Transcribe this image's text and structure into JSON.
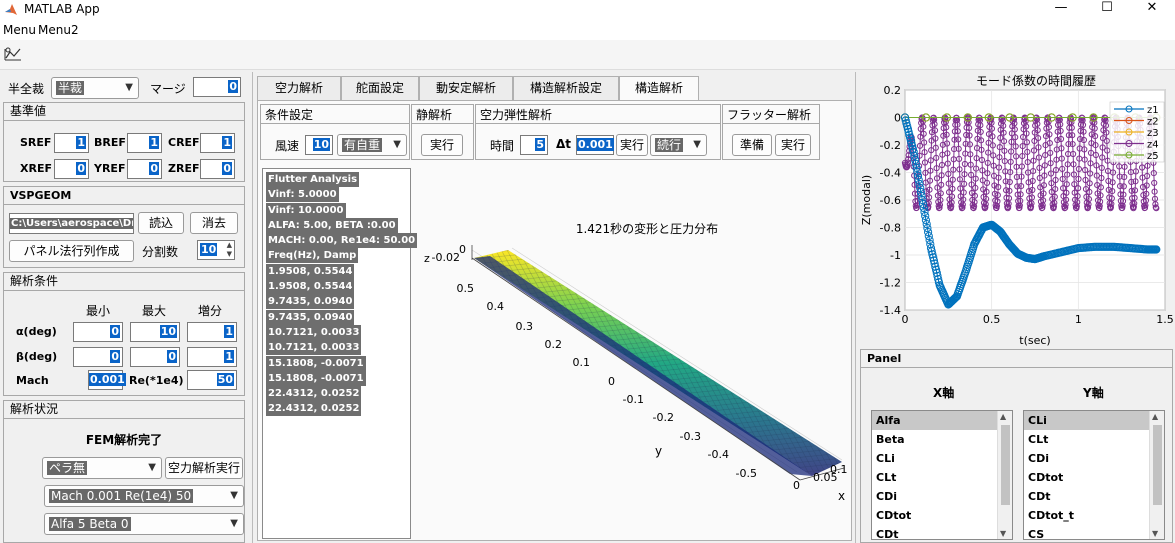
{
  "window": {
    "title": "MATLAB App",
    "minimize": "—",
    "maximize": "☐",
    "close": "✕"
  },
  "menu": [
    "Menu",
    "Menu2"
  ],
  "left": {
    "half_label": "半全裁",
    "half_value": "半裁",
    "margin_label": "マージ",
    "margin_value": "0",
    "ref": {
      "title": "基準値",
      "sref_label": "SREF",
      "sref": "1",
      "bref_label": "BREF",
      "bref": "1",
      "cref_label": "CREF",
      "cref": "1",
      "xref_label": "XREF",
      "xref": "0",
      "yref_label": "YREF",
      "yref": "0",
      "zref_label": "ZREF",
      "zref": "0"
    },
    "vspgeom": {
      "title": "VSPGEOM",
      "path": "C:\\Users\\aerospace\\Dr",
      "load": "読込",
      "erase": "消去",
      "panel_make": "パネル法行列作成",
      "div_label": "分割数",
      "div_value": "10"
    },
    "cond": {
      "title": "解析条件",
      "min": "最小",
      "max": "最大",
      "step": "増分",
      "alpha_label": "α(deg)",
      "alpha": [
        "0",
        "10",
        "1"
      ],
      "beta_label": "β(deg)",
      "beta": [
        "0",
        "0",
        "1"
      ],
      "mach_label": "Mach",
      "mach": "0.001",
      "re_label": "Re(*1e4)",
      "re": "50"
    },
    "status": {
      "title": "解析状況",
      "msg": "FEM解析完了",
      "propeller": "ペラ無",
      "run_aero": "空力解析実行",
      "mach_re": "Mach 0.001 Re(1e4) 50",
      "alfa_beta": "Alfa 5 Beta 0"
    }
  },
  "tabs": [
    "空力解析",
    "舵面設定",
    "動安定解析",
    "構造解析設定",
    "構造解析"
  ],
  "subpanels": {
    "cond": {
      "title": "条件設定",
      "speed_label": "風速",
      "speed": "10",
      "weight": "有自重"
    },
    "static": {
      "title": "静解析",
      "run": "実行"
    },
    "aeroelastic": {
      "title": "空力弾性解析",
      "time_label": "時間",
      "time": "5",
      "dt_label": "Δt",
      "dt": "0.001",
      "run": "実行",
      "mode": "続行"
    },
    "flutter": {
      "title": "フラッター解析",
      "prep": "準備",
      "run": "実行"
    }
  },
  "output_lines": [
    "Flutter Analysis",
    "Vinf: 5.0000",
    "Vinf: 10.0000",
    "ALFA: 5.00, BETA :0.00",
    "MACH: 0.00, Re1e4: 50.00",
    "Freq(Hz), Damp",
    "1.9508,  0.5544",
    "1.9508,  0.5544",
    "9.7435,  0.0940",
    "9.7435,  0.0940",
    "10.7121,  0.0033",
    "10.7121,  0.0033",
    "15.1808,  -0.0071",
    "15.1808,  -0.0071",
    "22.4312,  0.0252",
    "22.4312,  0.0252"
  ],
  "plot3d": {
    "title": "1.421秒の変形と圧力分布",
    "xlabel": "x",
    "ylabel": "y",
    "zlabel": "z",
    "y_ticks": [
      "0.5",
      "0.4",
      "0.3",
      "0.2",
      "0.1",
      "0",
      "-0.1",
      "-0.2",
      "-0.3",
      "-0.4",
      "-0.5"
    ],
    "x_ticks": [
      "0",
      "0.05",
      "0.1"
    ],
    "z_ticks": [
      "0",
      "-0.02"
    ]
  },
  "chart_data": {
    "type": "line",
    "title": "モード係数の時間履歴",
    "xlabel": "t(sec)",
    "ylabel": "Z(modal)",
    "xlim": [
      0,
      1.5
    ],
    "ylim": [
      -1.4,
      0.2
    ],
    "x_ticks": [
      "0",
      "0.5",
      "1",
      "1.5"
    ],
    "y_ticks": [
      "0.2",
      "0",
      "-0.2",
      "-0.4",
      "-0.6",
      "-0.8",
      "-1",
      "-1.2",
      "-1.4"
    ],
    "grid": true,
    "legend": "top-right",
    "series": [
      {
        "name": "z1",
        "color": "#0072bd",
        "x": [
          0,
          0.05,
          0.1,
          0.15,
          0.2,
          0.25,
          0.3,
          0.35,
          0.4,
          0.45,
          0.5,
          0.55,
          0.6,
          0.65,
          0.7,
          0.75,
          0.8,
          0.9,
          1.0,
          1.1,
          1.2,
          1.3,
          1.4,
          1.45
        ],
        "y": [
          0,
          -0.25,
          -0.6,
          -0.95,
          -1.22,
          -1.36,
          -1.3,
          -1.12,
          -0.92,
          -0.8,
          -0.78,
          -0.83,
          -0.92,
          -0.99,
          -1.02,
          -1.03,
          -1.01,
          -0.98,
          -0.95,
          -0.94,
          -0.94,
          -0.95,
          -0.96,
          -0.96
        ]
      },
      {
        "name": "z2",
        "color": "#d95319",
        "x": [
          0,
          1.45
        ],
        "y": [
          0,
          0
        ]
      },
      {
        "name": "z3",
        "color": "#edb120",
        "x": [
          0,
          1.45
        ],
        "y": [
          0,
          0
        ]
      },
      {
        "name": "z4",
        "color": "#7e2f8e",
        "center": -0.33,
        "amp": 0.33,
        "freq_hz": 15.18
      },
      {
        "name": "z5",
        "color": "#77ac30",
        "x": [
          0,
          1.45
        ],
        "y": [
          0,
          0
        ]
      }
    ]
  },
  "panel_lists": {
    "title": "Panel",
    "x_label": "X軸",
    "y_label": "Y軸",
    "x_items": [
      "Alfa",
      "Beta",
      "CLi",
      "CLt",
      "CDi",
      "CDtot",
      "CDt"
    ],
    "y_items": [
      "CLi",
      "CLt",
      "CDi",
      "CDtot",
      "CDt",
      "CDtot_t",
      "CS"
    ]
  }
}
